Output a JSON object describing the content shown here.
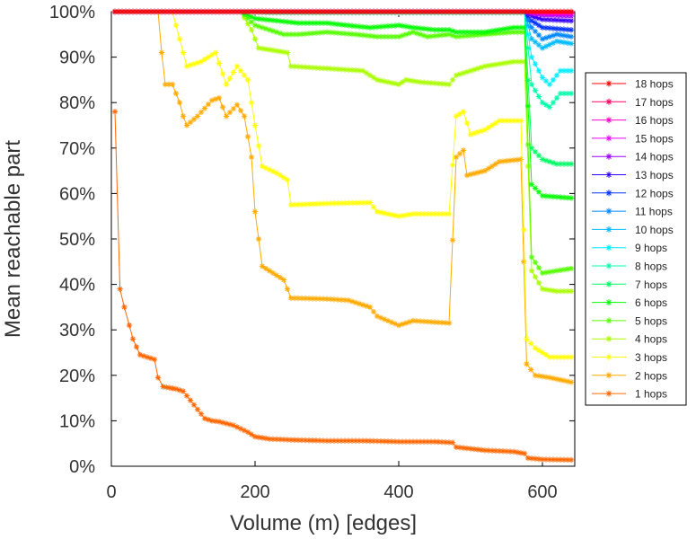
{
  "chart_data": {
    "type": "line",
    "title": "",
    "xlabel": "Volume (m) [edges]",
    "ylabel": "Mean reachable part",
    "xlim": [
      0,
      645
    ],
    "ylim": [
      0,
      100
    ],
    "xticks": [
      0,
      200,
      400,
      600
    ],
    "xtick_labels": [
      "0",
      "200",
      "400",
      "600"
    ],
    "yticks": [
      0,
      10,
      20,
      30,
      40,
      50,
      60,
      70,
      80,
      90,
      100
    ],
    "ytick_labels": [
      "0%",
      "10%",
      "20%",
      "30%",
      "40%",
      "50%",
      "60%",
      "70%",
      "80%",
      "90%",
      "100%"
    ],
    "marker": "asterisk",
    "legend_position": "right",
    "series": [
      {
        "name": "18 hops",
        "color": "#ff0000",
        "points": [
          [
            5,
            100
          ],
          [
            575,
            100
          ],
          [
            585,
            100
          ],
          [
            600,
            100
          ],
          [
            640,
            100
          ]
        ]
      },
      {
        "name": "17 hops",
        "color": "#ff0066",
        "points": [
          [
            5,
            100
          ],
          [
            575,
            100
          ],
          [
            585,
            100
          ],
          [
            600,
            100
          ],
          [
            640,
            100
          ]
        ]
      },
      {
        "name": "16 hops",
        "color": "#ff00cc",
        "points": [
          [
            5,
            100
          ],
          [
            575,
            100
          ],
          [
            585,
            100
          ],
          [
            600,
            99.8
          ],
          [
            640,
            99.8
          ]
        ]
      },
      {
        "name": "15 hops",
        "color": "#ee00ff",
        "points": [
          [
            5,
            100
          ],
          [
            575,
            100
          ],
          [
            585,
            99.8
          ],
          [
            600,
            99.6
          ],
          [
            640,
            99.5
          ]
        ]
      },
      {
        "name": "14 hops",
        "color": "#9900ff",
        "points": [
          [
            5,
            100
          ],
          [
            575,
            100
          ],
          [
            585,
            99.5
          ],
          [
            600,
            99.2
          ],
          [
            640,
            99.0
          ]
        ]
      },
      {
        "name": "13 hops",
        "color": "#3300ff",
        "points": [
          [
            5,
            100
          ],
          [
            575,
            100
          ],
          [
            585,
            99.0
          ],
          [
            600,
            98.3
          ],
          [
            640,
            98.0
          ]
        ]
      },
      {
        "name": "12 hops",
        "color": "#0033ff",
        "points": [
          [
            5,
            100
          ],
          [
            575,
            100
          ],
          [
            585,
            98.0
          ],
          [
            600,
            96.5
          ],
          [
            640,
            96.0
          ]
        ]
      },
      {
        "name": "11 hops",
        "color": "#0088ff",
        "points": [
          [
            5,
            100
          ],
          [
            575,
            100
          ],
          [
            585,
            96.5
          ],
          [
            600,
            94.0
          ],
          [
            620,
            95.0
          ],
          [
            640,
            94.5
          ]
        ]
      },
      {
        "name": "10 hops",
        "color": "#00bbff",
        "points": [
          [
            5,
            100
          ],
          [
            575,
            100
          ],
          [
            585,
            94.0
          ],
          [
            600,
            92.0
          ],
          [
            620,
            93.5
          ],
          [
            640,
            93.0
          ]
        ]
      },
      {
        "name": "9 hops",
        "color": "#00eeff",
        "points": [
          [
            5,
            100
          ],
          [
            480,
            100
          ],
          [
            575,
            100
          ],
          [
            585,
            90.0
          ],
          [
            600,
            85.5
          ],
          [
            610,
            84.0
          ],
          [
            625,
            87.0
          ],
          [
            640,
            87.0
          ]
        ]
      },
      {
        "name": "8 hops",
        "color": "#00ffaa",
        "points": [
          [
            5,
            100
          ],
          [
            480,
            100
          ],
          [
            575,
            100
          ],
          [
            585,
            84.0
          ],
          [
            600,
            80.0
          ],
          [
            610,
            79.0
          ],
          [
            625,
            82.0
          ],
          [
            640,
            82.0
          ]
        ]
      },
      {
        "name": "7 hops",
        "color": "#00ff66",
        "points": [
          [
            5,
            100
          ],
          [
            180,
            100
          ],
          [
            220,
            99.8
          ],
          [
            480,
            99.8
          ],
          [
            575,
            99.8
          ],
          [
            585,
            70.0
          ],
          [
            600,
            67.5
          ],
          [
            620,
            66.5
          ],
          [
            640,
            66.5
          ]
        ]
      },
      {
        "name": "6 hops",
        "color": "#00ff00",
        "points": [
          [
            5,
            100
          ],
          [
            180,
            100
          ],
          [
            200,
            98.5
          ],
          [
            260,
            97.5
          ],
          [
            300,
            97.5
          ],
          [
            340,
            96.8
          ],
          [
            360,
            96.5
          ],
          [
            400,
            97.0
          ],
          [
            420,
            96.5
          ],
          [
            450,
            96.0
          ],
          [
            470,
            96.0
          ],
          [
            480,
            95.5
          ],
          [
            520,
            95.5
          ],
          [
            560,
            96.5
          ],
          [
            575,
            96.5
          ],
          [
            585,
            62.0
          ],
          [
            600,
            59.5
          ],
          [
            640,
            59.0
          ]
        ]
      },
      {
        "name": "5 hops",
        "color": "#55ff00",
        "points": [
          [
            5,
            100
          ],
          [
            180,
            100
          ],
          [
            200,
            97.0
          ],
          [
            240,
            95.0
          ],
          [
            260,
            95.0
          ],
          [
            300,
            95.5
          ],
          [
            340,
            95.0
          ],
          [
            370,
            94.5
          ],
          [
            400,
            94.5
          ],
          [
            420,
            95.5
          ],
          [
            440,
            94.5
          ],
          [
            470,
            95.0
          ],
          [
            480,
            94.5
          ],
          [
            520,
            95.0
          ],
          [
            560,
            95.5
          ],
          [
            575,
            95.5
          ],
          [
            585,
            46.0
          ],
          [
            600,
            42.5
          ],
          [
            620,
            43.0
          ],
          [
            640,
            43.5
          ]
        ]
      },
      {
        "name": "4 hops",
        "color": "#aaff00",
        "points": [
          [
            5,
            100
          ],
          [
            180,
            100
          ],
          [
            195,
            96.0
          ],
          [
            205,
            92.0
          ],
          [
            225,
            91.5
          ],
          [
            245,
            91.0
          ],
          [
            250,
            88.0
          ],
          [
            300,
            87.5
          ],
          [
            350,
            87.0
          ],
          [
            370,
            85.0
          ],
          [
            400,
            84.0
          ],
          [
            410,
            85.0
          ],
          [
            430,
            84.5
          ],
          [
            470,
            84.0
          ],
          [
            480,
            86.0
          ],
          [
            500,
            87.0
          ],
          [
            520,
            88.0
          ],
          [
            560,
            89.0
          ],
          [
            575,
            89.0
          ],
          [
            585,
            43.0
          ],
          [
            600,
            39.0
          ],
          [
            620,
            38.5
          ],
          [
            640,
            38.5
          ]
        ]
      },
      {
        "name": "3 hops",
        "color": "#ffff00",
        "points": [
          [
            5,
            100
          ],
          [
            85,
            100
          ],
          [
            95,
            94.0
          ],
          [
            105,
            88.0
          ],
          [
            125,
            89.0
          ],
          [
            145,
            91.0
          ],
          [
            160,
            84.0
          ],
          [
            175,
            88.0
          ],
          [
            190,
            85.0
          ],
          [
            200,
            75.0
          ],
          [
            210,
            66.0
          ],
          [
            230,
            64.5
          ],
          [
            245,
            63.0
          ],
          [
            250,
            57.5
          ],
          [
            300,
            57.8
          ],
          [
            360,
            58.0
          ],
          [
            370,
            56.0
          ],
          [
            400,
            55.0
          ],
          [
            420,
            55.5
          ],
          [
            470,
            55.5
          ],
          [
            480,
            77.0
          ],
          [
            490,
            78.0
          ],
          [
            500,
            73.0
          ],
          [
            520,
            74.0
          ],
          [
            540,
            76.0
          ],
          [
            570,
            76.0
          ],
          [
            578,
            28.0
          ],
          [
            590,
            26.0
          ],
          [
            610,
            24.0
          ],
          [
            640,
            24.0
          ]
        ]
      },
      {
        "name": "2 hops",
        "color": "#ffaa00",
        "points": [
          [
            5,
            100
          ],
          [
            65,
            100
          ],
          [
            70,
            91.0
          ],
          [
            75,
            84.0
          ],
          [
            85,
            84.0
          ],
          [
            95,
            80.0
          ],
          [
            100,
            77.0
          ],
          [
            105,
            75.0
          ],
          [
            120,
            77.0
          ],
          [
            140,
            80.5
          ],
          [
            150,
            81.0
          ],
          [
            160,
            77.0
          ],
          [
            175,
            79.5
          ],
          [
            185,
            77.0
          ],
          [
            195,
            68.0
          ],
          [
            200,
            56.0
          ],
          [
            210,
            44.0
          ],
          [
            240,
            41.0
          ],
          [
            250,
            37.0
          ],
          [
            300,
            36.8
          ],
          [
            330,
            36.5
          ],
          [
            360,
            35.0
          ],
          [
            370,
            33.0
          ],
          [
            400,
            31.0
          ],
          [
            420,
            32.0
          ],
          [
            470,
            31.5
          ],
          [
            480,
            68.0
          ],
          [
            490,
            69.5
          ],
          [
            495,
            64.0
          ],
          [
            520,
            65.0
          ],
          [
            540,
            67.0
          ],
          [
            570,
            67.5
          ],
          [
            578,
            22.5
          ],
          [
            590,
            20.0
          ],
          [
            610,
            19.5
          ],
          [
            640,
            18.5
          ]
        ]
      },
      {
        "name": "1 hops",
        "color": "#ff6600",
        "points": [
          [
            5,
            78.0
          ],
          [
            12,
            39.0
          ],
          [
            18,
            35.0
          ],
          [
            25,
            31.0
          ],
          [
            30,
            28.0
          ],
          [
            40,
            24.5
          ],
          [
            50,
            24.0
          ],
          [
            60,
            23.5
          ],
          [
            65,
            19.5
          ],
          [
            72,
            17.5
          ],
          [
            90,
            17.0
          ],
          [
            100,
            16.5
          ],
          [
            110,
            14.5
          ],
          [
            120,
            12.5
          ],
          [
            130,
            10.5
          ],
          [
            140,
            10.0
          ],
          [
            150,
            9.8
          ],
          [
            170,
            9.0
          ],
          [
            190,
            7.5
          ],
          [
            200,
            6.5
          ],
          [
            220,
            6.0
          ],
          [
            250,
            5.8
          ],
          [
            300,
            5.6
          ],
          [
            350,
            5.6
          ],
          [
            400,
            5.4
          ],
          [
            450,
            5.4
          ],
          [
            475,
            5.2
          ],
          [
            480,
            4.2
          ],
          [
            520,
            3.5
          ],
          [
            560,
            3.2
          ],
          [
            575,
            2.8
          ],
          [
            580,
            1.8
          ],
          [
            600,
            1.5
          ],
          [
            640,
            1.4
          ]
        ]
      }
    ]
  }
}
